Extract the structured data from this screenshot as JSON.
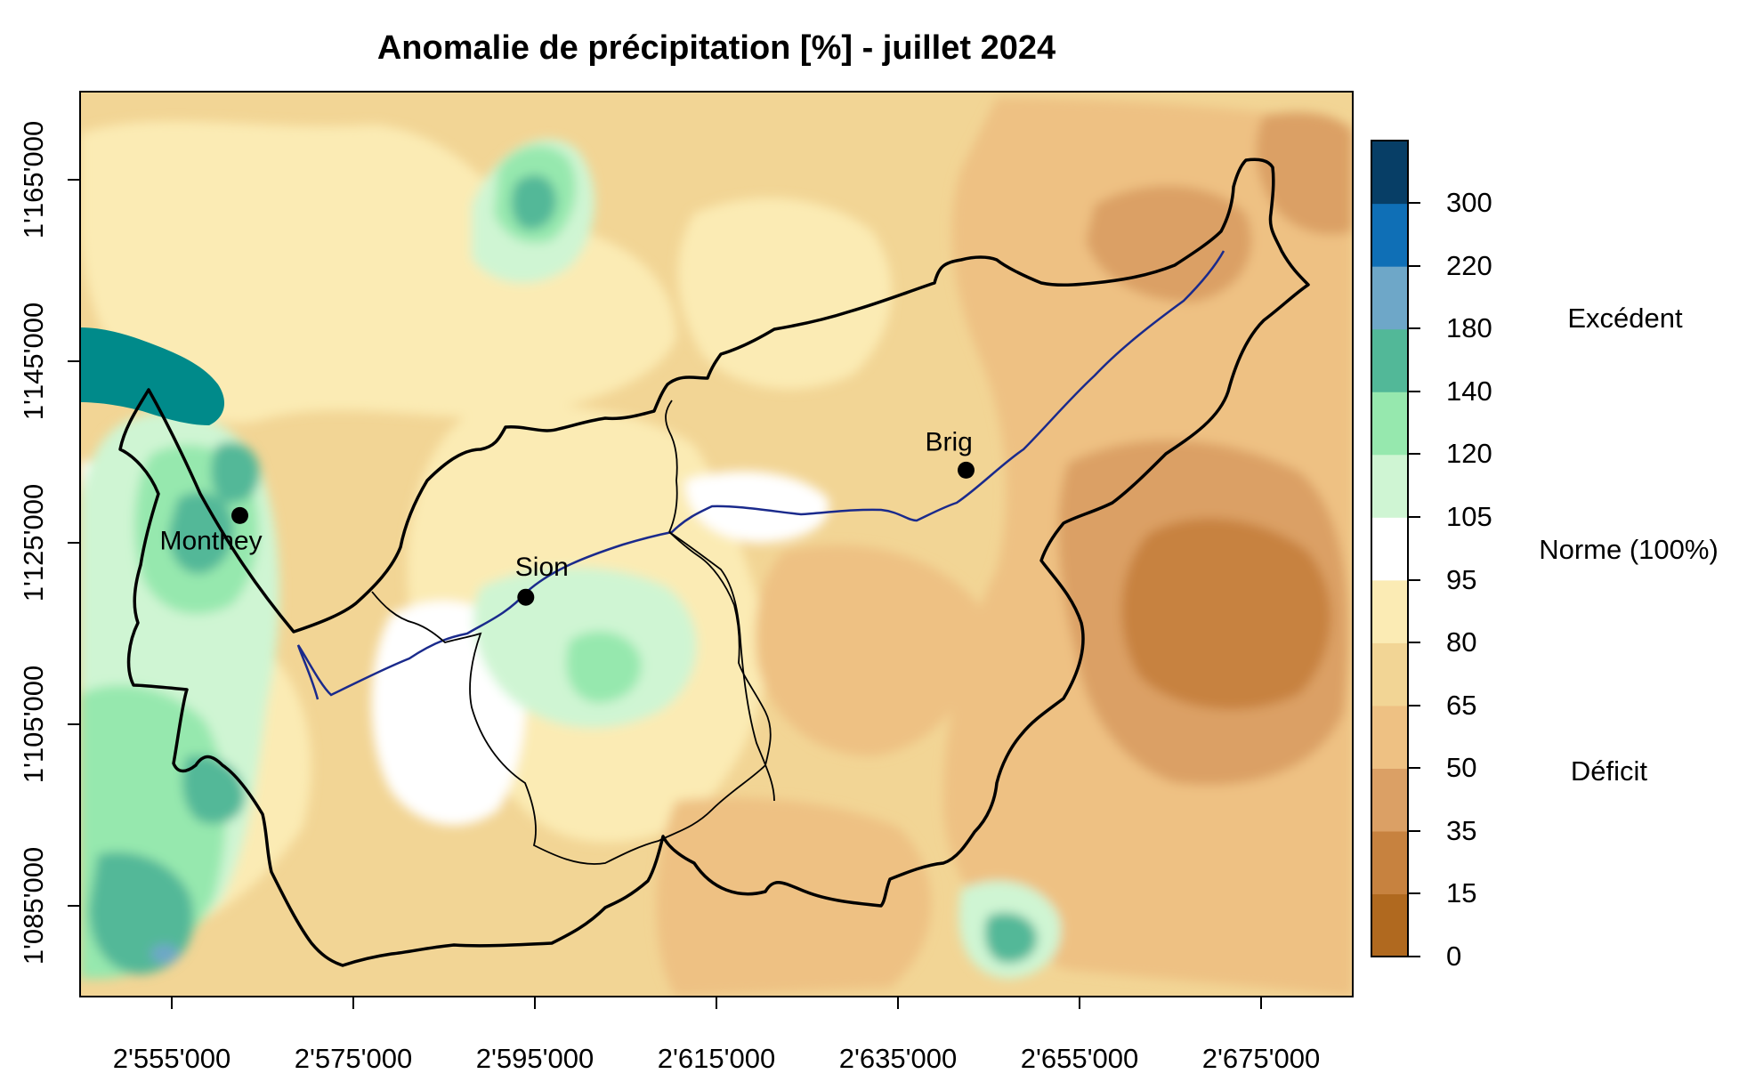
{
  "title": "Anomalie de précipitation [%] - juillet 2024",
  "x_ticks": [
    "2'555'000",
    "2'575'000",
    "2'595'000",
    "2'615'000",
    "2'635'000",
    "2'655'000",
    "2'675'000"
  ],
  "y_ticks": [
    "1'085'000",
    "1'105'000",
    "1'125'000",
    "1'145'000",
    "1'165'000"
  ],
  "colorbar": {
    "labels": [
      "0",
      "15",
      "35",
      "50",
      "65",
      "80",
      "95",
      "105",
      "120",
      "140",
      "180",
      "220",
      "300"
    ],
    "colors": [
      "#b0691f",
      "#c7823f",
      "#dba065",
      "#eec183",
      "#f2d595",
      "#fbebb4",
      "#ffffff",
      "#cff5d3",
      "#96e8ae",
      "#52b898",
      "#6ea7c8",
      "#0f6fb6",
      "#073e66"
    ]
  },
  "legend": {
    "excess": "Excédent",
    "norm": "Norme (100%)",
    "deficit": "Déficit"
  },
  "cities": [
    {
      "name": "Monthey",
      "x": 2562500,
      "y": 1128000
    },
    {
      "name": "Sion",
      "x": 2594000,
      "y": 1119000
    },
    {
      "name": "Brig",
      "x": 2642500,
      "y": 1133000
    }
  ],
  "colors": {
    "border": "#000000",
    "river": "#1a2a8c",
    "lake": "#008a8a"
  }
}
